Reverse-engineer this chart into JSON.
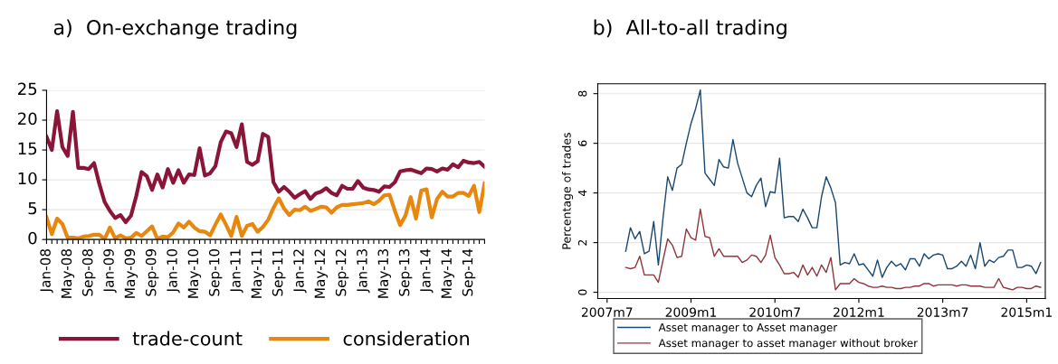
{
  "chart_data": [
    {
      "type": "line",
      "title": "a)  On-exchange trading",
      "categories": [
        "Jan-08",
        null,
        null,
        null,
        "May-08",
        null,
        null,
        null,
        "Sep-08",
        null,
        null,
        null,
        "Jan-09",
        null,
        null,
        null,
        "May-09",
        null,
        null,
        null,
        "Sep-09",
        null,
        null,
        null,
        "Jan-10",
        null,
        null,
        null,
        "May-10",
        null,
        null,
        null,
        "Sep-10",
        null,
        null,
        null,
        "Jan-11",
        null,
        null,
        null,
        "May-11",
        null,
        null,
        null,
        "Sep-11",
        null,
        null,
        null,
        "Jan-12",
        null,
        null,
        null,
        "May-12",
        null,
        null,
        null,
        "Sep-12",
        null,
        null,
        null,
        "Jan-13",
        null,
        null,
        null,
        "May-13",
        null,
        null,
        null,
        "Sep-13",
        null,
        null,
        null,
        "Jan-14",
        null,
        null,
        null,
        "May-14",
        null,
        null,
        null,
        "Sep-14",
        null,
        null,
        null
      ],
      "series": [
        {
          "name": "trade-count",
          "color": "#8b1538",
          "values": [
            17.2,
            15.0,
            21.5,
            15.5,
            14.0,
            21.4,
            12.0,
            12.0,
            11.8,
            12.8,
            9.3,
            6.3,
            4.8,
            3.6,
            4.1,
            2.9,
            4.0,
            7.3,
            11.3,
            10.6,
            8.3,
            10.9,
            8.7,
            11.8,
            9.5,
            11.6,
            9.5,
            10.9,
            10.8,
            15.3,
            10.7,
            11.1,
            12.3,
            16.3,
            18.1,
            17.8,
            15.5,
            19.3,
            13.0,
            12.5,
            13.1,
            17.7,
            17.2,
            9.6,
            8.0,
            8.8,
            8.0,
            7.0,
            7.6,
            8.1,
            6.8,
            7.7,
            8.0,
            8.6,
            7.8,
            7.4,
            9.0,
            8.5,
            8.5,
            9.8,
            8.7,
            8.4,
            8.3,
            8.0,
            8.9,
            8.8,
            9.6,
            11.4,
            11.6,
            11.7,
            11.4,
            11.1,
            11.9,
            11.8,
            11.4,
            11.9,
            11.7,
            12.6,
            12.1,
            13.2,
            12.9,
            12.8,
            13.0,
            12.2
          ]
        },
        {
          "name": "consideration",
          "color": "#e8870e",
          "values": [
            3.7,
            0.9,
            3.5,
            2.6,
            0.3,
            0.3,
            0.2,
            0.5,
            0.6,
            0.8,
            0.8,
            0.1,
            2.0,
            0.2,
            0.7,
            0.2,
            0.3,
            1.1,
            0.6,
            1.4,
            2.2,
            0.1,
            0.5,
            0.4,
            1.2,
            2.7,
            2.0,
            3.0,
            2.0,
            1.4,
            1.3,
            0.7,
            2.5,
            4.2,
            2.5,
            0.6,
            3.8,
            0.6,
            2.3,
            2.6,
            1.3,
            2.1,
            3.3,
            5.3,
            6.9,
            5.2,
            4.1,
            5.0,
            4.9,
            5.5,
            4.8,
            5.1,
            5.5,
            5.4,
            4.5,
            5.4,
            5.8,
            5.8,
            5.9,
            6.0,
            6.1,
            6.4,
            5.9,
            6.5,
            7.4,
            7.5,
            4.8,
            2.4,
            4.0,
            7.1,
            3.5,
            8.2,
            8.4,
            3.7,
            6.8,
            8.0,
            7.2,
            7.2,
            7.8,
            7.8,
            7.3,
            9.0,
            4.6,
            9.4
          ]
        }
      ],
      "ylim": [
        0,
        25
      ],
      "yticks": [
        0,
        5,
        10,
        15,
        20,
        25
      ],
      "grid": "y",
      "legend": "bottom"
    },
    {
      "type": "line",
      "title": "b)  All-to-all trading",
      "ylabel": "Percentage of trades",
      "x": [
        "2007-11",
        "2007-12",
        "2008-01",
        "2008-02",
        "2008-03",
        "2008-04",
        "2008-05",
        "2008-06",
        "2008-07",
        "2008-08",
        "2008-09",
        "2008-10",
        "2008-11",
        "2008-12",
        "2009-01",
        "2009-02",
        "2009-03",
        "2009-04",
        "2009-05",
        "2009-06",
        "2009-07",
        "2009-08",
        "2009-09",
        "2009-10",
        "2009-11",
        "2009-12",
        "2010-01",
        "2010-02",
        "2010-03",
        "2010-04",
        "2010-05",
        "2010-06",
        "2010-07",
        "2010-08",
        "2010-09",
        "2010-10",
        "2010-11",
        "2010-12",
        "2011-01",
        "2011-02",
        "2011-03",
        "2011-04",
        "2011-05",
        "2011-06",
        "2011-07",
        "2011-08",
        "2011-09",
        "2011-10",
        "2011-11",
        "2011-12",
        "2012-01",
        "2012-02",
        "2012-03",
        "2012-04",
        "2012-05",
        "2012-06",
        "2012-07",
        "2012-08",
        "2012-09",
        "2012-10",
        "2012-11",
        "2012-12",
        "2013-01",
        "2013-02",
        "2013-03",
        "2013-04",
        "2013-05",
        "2013-06",
        "2013-07",
        "2013-08",
        "2013-09",
        "2013-10",
        "2013-11",
        "2013-12",
        "2014-01",
        "2014-02",
        "2014-03",
        "2014-04",
        "2014-05",
        "2014-06",
        "2014-07",
        "2014-08",
        "2014-09",
        "2014-10",
        "2014-11",
        "2014-12",
        "2015-01",
        "2015-02",
        "2015-03",
        "2015-04"
      ],
      "series": [
        {
          "name": "Asset manager to Asset manager",
          "color": "#1a476f",
          "values": [
            1.65,
            2.6,
            2.15,
            2.45,
            1.55,
            1.65,
            2.85,
            1.1,
            3.0,
            4.65,
            4.1,
            5.0,
            5.15,
            6.0,
            6.8,
            7.4,
            8.15,
            4.8,
            4.55,
            4.3,
            5.35,
            5.05,
            5.0,
            6.15,
            5.2,
            4.6,
            4.0,
            3.85,
            4.3,
            4.6,
            3.45,
            4.05,
            4.0,
            5.4,
            3.0,
            3.05,
            3.05,
            2.85,
            3.35,
            3.0,
            2.6,
            2.6,
            3.85,
            4.65,
            4.2,
            3.6,
            1.1,
            1.2,
            1.15,
            1.55,
            1.1,
            1.15,
            0.9,
            0.65,
            1.3,
            0.6,
            1.0,
            1.25,
            1.05,
            1.15,
            0.9,
            1.35,
            1.35,
            1.05,
            1.55,
            1.35,
            1.5,
            1.55,
            1.5,
            0.95,
            0.95,
            1.05,
            1.25,
            1.05,
            1.5,
            0.95,
            2.0,
            1.05,
            1.3,
            1.2,
            1.4,
            1.45,
            1.7,
            1.7,
            1.0,
            1.0,
            1.1,
            1.05,
            0.75,
            1.2
          ]
        },
        {
          "name": "Asset manager to asset manager without broker",
          "color": "#90353b",
          "values": [
            1.0,
            0.95,
            1.0,
            1.45,
            0.7,
            0.7,
            0.7,
            0.4,
            1.3,
            2.15,
            1.9,
            1.4,
            1.45,
            2.55,
            2.2,
            2.1,
            3.35,
            2.25,
            2.2,
            1.45,
            1.75,
            1.45,
            1.45,
            1.45,
            1.45,
            1.2,
            1.3,
            1.5,
            1.45,
            1.2,
            1.5,
            2.3,
            1.4,
            1.1,
            0.75,
            0.75,
            0.8,
            0.6,
            1.1,
            0.7,
            1.0,
            0.65,
            1.1,
            0.8,
            1.4,
            0.1,
            0.35,
            0.35,
            0.35,
            0.55,
            0.4,
            0.35,
            0.25,
            0.2,
            0.2,
            0.25,
            0.2,
            0.2,
            0.15,
            0.15,
            0.2,
            0.2,
            0.25,
            0.25,
            0.35,
            0.35,
            0.25,
            0.3,
            0.3,
            0.3,
            0.3,
            0.25,
            0.3,
            0.3,
            0.25,
            0.25,
            0.25,
            0.2,
            0.2,
            0.2,
            0.55,
            0.2,
            0.15,
            0.1,
            0.2,
            0.2,
            0.15,
            0.15,
            0.25,
            0.2
          ]
        }
      ],
      "xlim": [
        "2007-05",
        "2015-05"
      ],
      "xticks": [
        {
          "value": "2007-07",
          "label": "2007m7"
        },
        {
          "value": "2009-01",
          "label": "2009m1"
        },
        {
          "value": "2010-07",
          "label": "2010m7"
        },
        {
          "value": "2012-01",
          "label": "2012m1"
        },
        {
          "value": "2013-07",
          "label": "2013m7"
        },
        {
          "value": "2015-01",
          "label": "2015m1"
        }
      ],
      "ylim": [
        -0.25,
        8.4
      ],
      "yticks": [
        0,
        2,
        4,
        6,
        8
      ],
      "grid": "y",
      "legend": "bottom"
    }
  ]
}
